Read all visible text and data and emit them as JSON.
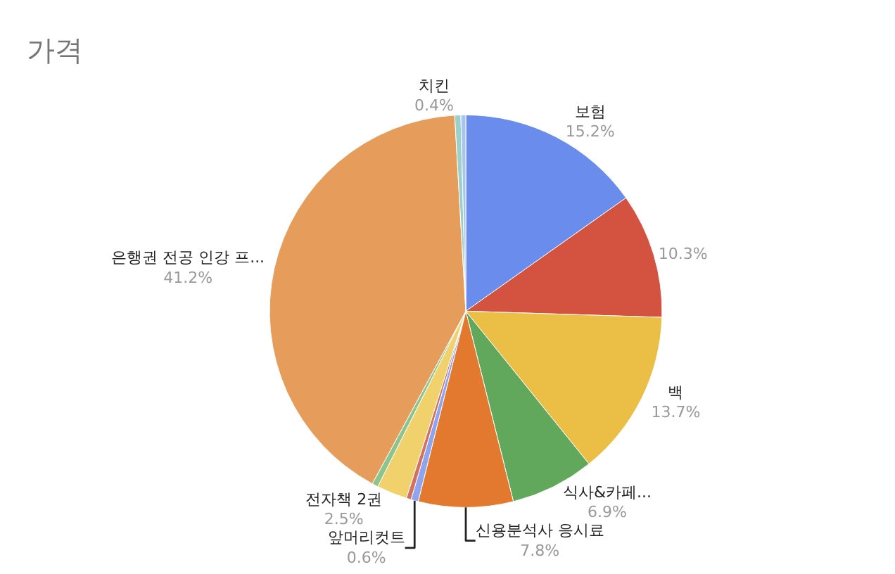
{
  "chart_data": {
    "type": "pie",
    "title": "가격",
    "categories": [
      "보험",
      null,
      "백",
      "식사&카페...",
      "신용분석사 응시료",
      "앞머리컷트",
      null,
      "전자책 2권",
      null,
      "은행권 전공 인강 프...",
      null,
      "치킨"
    ],
    "values": [
      15.2,
      10.3,
      13.7,
      6.9,
      7.8,
      0.6,
      0.4,
      2.5,
      0.5,
      41.2,
      0.5,
      0.4
    ],
    "value_labels": [
      "15.2%",
      "10.3%",
      "13.7%",
      "6.9%",
      "7.8%",
      "0.6%",
      null,
      "2.5%",
      null,
      "41.2%",
      null,
      "0.4%"
    ],
    "colors": [
      "#6a8ded",
      "#d35240",
      "#ebbf46",
      "#62a85c",
      "#e3782f",
      "#8fa4ef",
      "#d47060",
      "#f0d16c",
      "#8cc48e",
      "#e69d5b",
      "#9dd0c8",
      "#a8c4f0"
    ],
    "legend": false
  }
}
